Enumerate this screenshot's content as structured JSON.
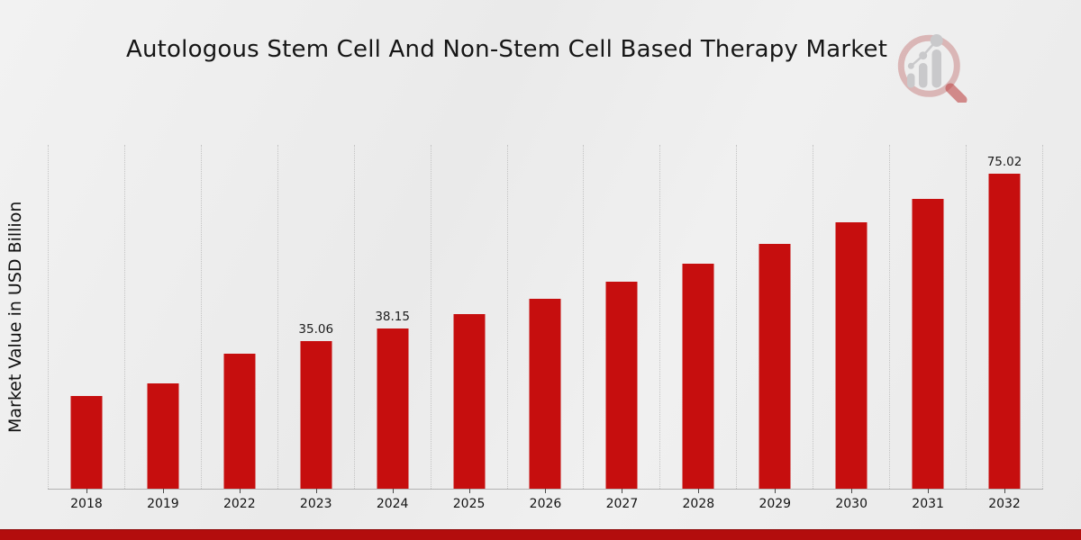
{
  "header": {
    "title": "Autologous Stem Cell And Non-Stem Cell Based Therapy Market"
  },
  "branding": {
    "logo_name": "magnifier-growth-chart-logo",
    "ring_color": "#c98f8f",
    "handle_color": "#c25c5c",
    "bars_color": "#c9c9cb"
  },
  "chart_data": {
    "type": "bar",
    "title": "Autologous Stem Cell And Non-Stem Cell Based Therapy Market",
    "xlabel": "",
    "ylabel": "Market Value in USD Billion",
    "categories": [
      "2018",
      "2019",
      "2022",
      "2023",
      "2024",
      "2025",
      "2026",
      "2027",
      "2028",
      "2029",
      "2030",
      "2031",
      "2032"
    ],
    "values": [
      22.1,
      25.1,
      32.22,
      35.06,
      38.15,
      41.52,
      45.18,
      49.17,
      53.5,
      58.22,
      63.35,
      68.93,
      75.02
    ],
    "data_labels": [
      "",
      "",
      "",
      "35.06",
      "38.15",
      "",
      "",
      "",
      "",
      "",
      "",
      "",
      "75.02"
    ],
    "ylim": [
      0,
      82
    ],
    "grid": "vertical-dotted",
    "legend": "none",
    "bar_color": "#c60e0e"
  },
  "footer": {
    "accent_bar_color": "#b30d0d"
  }
}
